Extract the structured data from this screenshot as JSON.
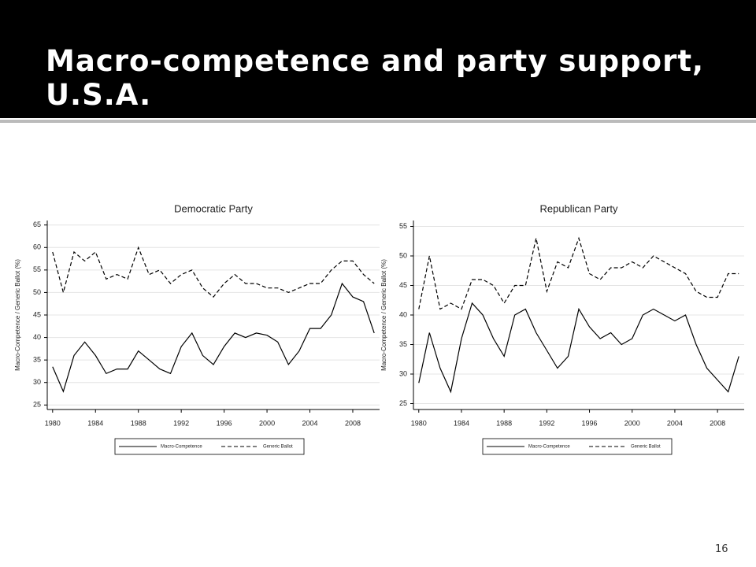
{
  "title": "Macro-competence and party support, U.S.A.",
  "page_number": "16",
  "chart_data": [
    {
      "type": "line",
      "title": "Democratic Party",
      "y_label": "Macro-Competence / Generic Ballot (%)",
      "x": [
        1980,
        1981,
        1982,
        1983,
        1984,
        1985,
        1986,
        1987,
        1988,
        1989,
        1990,
        1991,
        1992,
        1993,
        1994,
        1995,
        1996,
        1997,
        1998,
        1999,
        2000,
        2001,
        2002,
        2003,
        2004,
        2005,
        2006,
        2007,
        2008,
        2009,
        2010
      ],
      "series": [
        {
          "name": "Macro-Competence",
          "color": "#000000",
          "style": "solid",
          "values": [
            33.5,
            28,
            36,
            39,
            36,
            32,
            33,
            33,
            37,
            35,
            33,
            32,
            38,
            41,
            36,
            34,
            38,
            41,
            40,
            41,
            40.5,
            39,
            34,
            37,
            42,
            42,
            45,
            52,
            49,
            48,
            41
          ]
        },
        {
          "name": "Generic Ballot",
          "color": "#000000",
          "style": "dashed",
          "values": [
            59,
            50,
            59,
            57,
            59,
            53,
            54,
            53,
            60,
            54,
            55,
            52,
            54,
            55,
            51,
            49,
            52,
            54,
            52,
            52,
            51,
            51,
            50,
            51,
            52,
            52,
            55,
            57,
            57,
            54,
            52
          ]
        }
      ],
      "xlim": [
        1979.5,
        2010.5
      ],
      "xticks": [
        1980,
        1984,
        1988,
        1992,
        1996,
        2000,
        2004,
        2008
      ],
      "ylim": [
        24,
        66
      ],
      "yticks": [
        25,
        30,
        35,
        40,
        45,
        50,
        55,
        60,
        65
      ],
      "grid": true
    },
    {
      "type": "line",
      "title": "Republican Party",
      "y_label": "Macro-Competence / Generic Ballot (%)",
      "x": [
        1980,
        1981,
        1982,
        1983,
        1984,
        1985,
        1986,
        1987,
        1988,
        1989,
        1990,
        1991,
        1992,
        1993,
        1994,
        1995,
        1996,
        1997,
        1998,
        1999,
        2000,
        2001,
        2002,
        2003,
        2004,
        2005,
        2006,
        2007,
        2008,
        2009,
        2010
      ],
      "series": [
        {
          "name": "Macro-Competence",
          "color": "#000000",
          "style": "solid",
          "values": [
            28.5,
            37,
            31,
            27,
            36,
            42,
            40,
            36,
            33,
            40,
            41,
            37,
            34,
            31,
            33,
            41,
            38,
            36,
            37,
            35,
            36,
            40,
            41,
            40,
            39,
            40,
            35,
            31,
            29,
            27,
            33
          ]
        },
        {
          "name": "Generic Ballot",
          "color": "#000000",
          "style": "dashed",
          "values": [
            41,
            50,
            41,
            42,
            41,
            46,
            46,
            45,
            42,
            45,
            45,
            53,
            44,
            49,
            48,
            53,
            47,
            46,
            48,
            48,
            49,
            48,
            50,
            49,
            48,
            47,
            44,
            43,
            43,
            47,
            47
          ]
        }
      ],
      "xlim": [
        1979.5,
        2010.5
      ],
      "xticks": [
        1980,
        1984,
        1988,
        1992,
        1996,
        2000,
        2004,
        2008
      ],
      "ylim": [
        24,
        56
      ],
      "yticks": [
        25,
        30,
        35,
        40,
        45,
        50,
        55
      ],
      "grid": true
    }
  ]
}
